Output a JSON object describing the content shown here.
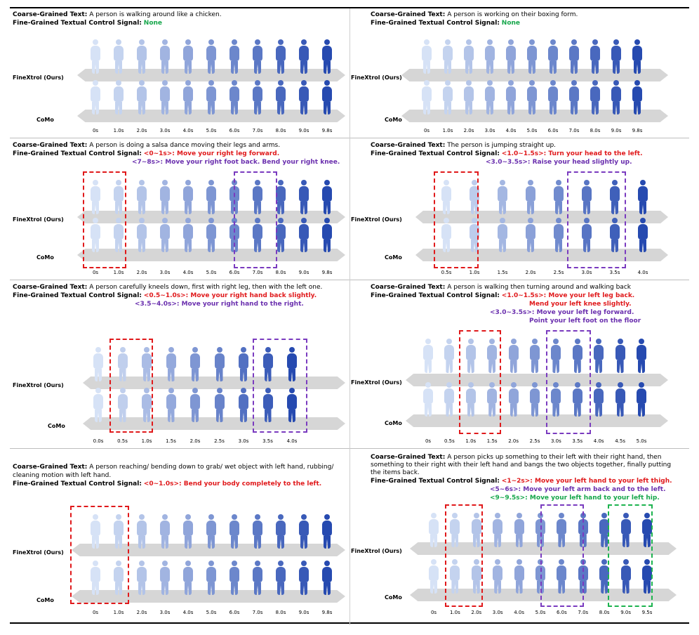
{
  "labels": {
    "coarse": "Coarse-Grained Text:",
    "fine": "Fine-Grained Textual Control Signal:",
    "ours": "FineXtrol (Ours)",
    "como": "CoMo",
    "none": "None"
  },
  "panels": [
    {
      "coarse_text": " A person is walking around like a chicken.",
      "signals": [],
      "ticks": [
        "0s",
        "1.0s",
        "2.0s",
        "3.0s",
        "4.0s",
        "5.0s",
        "6.0s",
        "7.0s",
        "8.0s",
        "9.0s",
        "9.8s"
      ]
    },
    {
      "coarse_text": " A person is working on their boxing form.",
      "signals": [],
      "ticks": [
        "0s",
        "1.0s",
        "2.0s",
        "3.0s",
        "4.0s",
        "5.0s",
        "6.0s",
        "7.0s",
        "8.0s",
        "9.0s",
        "9.8s"
      ]
    },
    {
      "coarse_text": " A person is doing a salsa dance moving their legs and arms.",
      "signals": [
        {
          "tag": "<0~1s>:",
          "text": " Move your right leg forward.",
          "color": "red"
        },
        {
          "tag": "<7~8s>:",
          "text": " Move your right foot back. Bend your right knee.",
          "color": "pur"
        }
      ],
      "ticks": [
        "0s",
        "1.0s",
        "2.0s",
        "3.0s",
        "4.0s",
        "5.0s",
        "6.0s",
        "7.0s",
        "8.0s",
        "9.0s",
        "9.8s"
      ]
    },
    {
      "coarse_text": " The person is jumping straight up.",
      "signals": [
        {
          "tag": "<1.0~1.5s>:",
          "text": "  Turn your head to the left.",
          "color": "red"
        },
        {
          "tag": "<3.0~3.5s>:",
          "text": "  Raise your head slightly up.",
          "color": "pur"
        }
      ],
      "ticks": [
        "0.5s",
        "1.0s",
        "1.5s",
        "2.0s",
        "2.5s",
        "3.0s",
        "3.5s",
        "4.0s"
      ]
    },
    {
      "coarse_text": " A person carefully kneels down, first with right leg, then with the left one.",
      "signals": [
        {
          "tag": "<0.5~1.0s>:",
          "text": " Move your right hand back slightly.",
          "color": "red"
        },
        {
          "tag": "<3.5~4.0s>:",
          "text": " Move your right hand to the right.",
          "color": "pur"
        }
      ],
      "ticks": [
        "0.0s",
        "0.5s",
        "1.0s",
        "1.5s",
        "2.0s",
        "2.5s",
        "3.0s",
        "3.5s",
        "4.0s"
      ]
    },
    {
      "coarse_text": " A person is walking then turning around and walking back",
      "signals": [
        {
          "tag": "<1.0~1.5s>:",
          "text": " Move your left leg back.",
          "color": "red"
        },
        {
          "tag": "",
          "text": "Mend your left knee slightly.",
          "color": "red"
        },
        {
          "tag": "<3.0~3.5s>:",
          "text": " Move your left leg forward.",
          "color": "pur"
        },
        {
          "tag": "",
          "text": "Point your left foot on the floor",
          "color": "pur"
        }
      ],
      "ticks": [
        "0s",
        "0.5s",
        "1.0s",
        "1.5s",
        "2.0s",
        "2.5s",
        "3.0s",
        "3.5s",
        "4.0s",
        "4.5s",
        "5.0s"
      ]
    },
    {
      "coarse_text_lines": [
        " A person reaching/ bending down to grab/ wet object with left hand, rubbing/",
        "cleaning motion with left hand."
      ],
      "signals": [
        {
          "tag": "<0~1.0s>:",
          "text": "  Bend your body completely to the left.",
          "color": "red"
        }
      ],
      "ticks": [
        "0s",
        "1.0s",
        "2.0s",
        "3.0s",
        "4.0s",
        "5.0s",
        "6.0s",
        "7.0s",
        "8.0s",
        "9.0s",
        "9.8s"
      ]
    },
    {
      "coarse_text_lines": [
        " A person picks up something to their left with their right hand, then",
        "something to their right with their left hand and bangs the two objects together, finally putting",
        "the items back."
      ],
      "signals": [
        {
          "tag": "<1~2s>:",
          "text": " Move your left hand to your left thigh.",
          "color": "red"
        },
        {
          "tag": "<5~6s>:",
          "text": " Move your left arm back and to the left.",
          "color": "pur"
        },
        {
          "tag": "<9~9.5s>:",
          "text": " Move your left hand to your left hip.",
          "color": "grn"
        }
      ],
      "ticks": [
        "0s",
        "1.0s",
        "2.0s",
        "3.0s",
        "4.0s",
        "5.0s",
        "6.0s",
        "7.0s",
        "8.0s",
        "9.0s",
        "9.5s"
      ]
    }
  ],
  "colors": {
    "red": "#e0191b",
    "purple": "#6a2fae",
    "green": "#15a64a",
    "none": "#15a64a"
  }
}
